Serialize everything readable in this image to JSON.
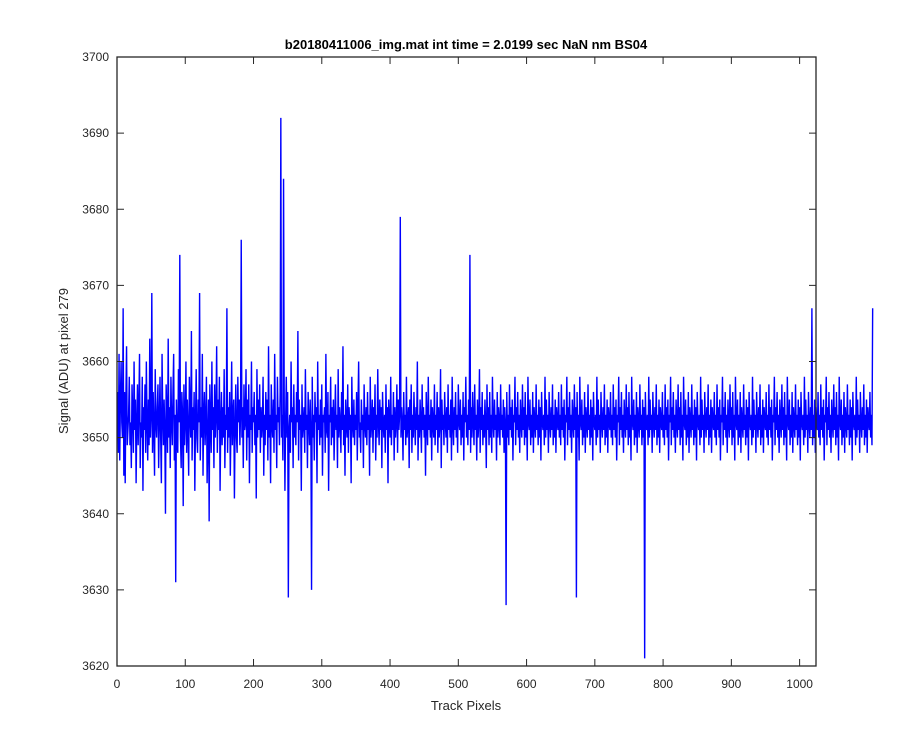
{
  "chart_data": {
    "type": "line",
    "title": "b20180411006_img.mat int time = 2.0199 sec  NaN nm BS04",
    "xlabel": "Track Pixels",
    "ylabel": "Signal (ADU) at pixel 279",
    "xlim": [
      0,
      1024
    ],
    "ylim": [
      3620,
      3700
    ],
    "xticks": [
      0,
      100,
      200,
      300,
      400,
      500,
      600,
      700,
      800,
      900,
      1000
    ],
    "yticks": [
      3620,
      3630,
      3640,
      3650,
      3660,
      3670,
      3680,
      3690,
      3700
    ],
    "xtick_labels": [
      "0",
      "100",
      "200",
      "300",
      "400",
      "500",
      "600",
      "700",
      "800",
      "900",
      "1000"
    ],
    "ytick_labels": [
      "3620",
      "3630",
      "3640",
      "3650",
      "3660",
      "3670",
      "3680",
      "3690",
      "3700"
    ],
    "grid": false,
    "line_color": "#0000ff",
    "series": [
      {
        "x_start": 1,
        "x_step": 1,
        "values": [
          3656,
          3648,
          3661,
          3647,
          3655,
          3660,
          3652,
          3650,
          3667,
          3645,
          3656,
          3644,
          3655,
          3662,
          3649,
          3651,
          3653,
          3658,
          3649,
          3652,
          3646,
          3657,
          3653,
          3648,
          3660,
          3651,
          3655,
          3644,
          3652,
          3657,
          3649,
          3654,
          3661,
          3646,
          3652,
          3650,
          3658,
          3643,
          3654,
          3651,
          3657,
          3648,
          3660,
          3652,
          3647,
          3655,
          3649,
          3663,
          3650,
          3653,
          3669,
          3648,
          3656,
          3651,
          3645,
          3659,
          3652,
          3650,
          3654,
          3657,
          3646,
          3652,
          3658,
          3650,
          3644,
          3661,
          3653,
          3649,
          3655,
          3651,
          3640,
          3657,
          3653,
          3648,
          3663,
          3650,
          3654,
          3646,
          3658,
          3652,
          3649,
          3656,
          3661,
          3647,
          3653,
          3631,
          3655,
          3650,
          3648,
          3659,
          3652,
          3674,
          3650,
          3646,
          3656,
          3653,
          3641,
          3657,
          3649,
          3652,
          3660,
          3648,
          3655,
          3651,
          3645,
          3658,
          3653,
          3650,
          3664,
          3647,
          3654,
          3651,
          3656,
          3643,
          3652,
          3659,
          3650,
          3648,
          3655,
          3652,
          3669,
          3647,
          3654,
          3650,
          3661,
          3645,
          3653,
          3656,
          3649,
          3652,
          3658,
          3644,
          3650,
          3655,
          3639,
          3657,
          3652,
          3648,
          3660,
          3651,
          3654,
          3646,
          3657,
          3650,
          3653,
          3662,
          3648,
          3655,
          3651,
          3658,
          3643,
          3652,
          3656,
          3649,
          3654,
          3650,
          3659,
          3646,
          3653,
          3651,
          3667,
          3648,
          3654,
          3650,
          3656,
          3645,
          3652,
          3660,
          3649,
          3653,
          3655,
          3642,
          3651,
          3657,
          3650,
          3648,
          3658,
          3652,
          3655,
          3649,
          3653,
          3676,
          3650,
          3654,
          3646,
          3657,
          3651,
          3652,
          3659,
          3647,
          3655,
          3650,
          3657,
          3644,
          3653,
          3651,
          3660,
          3648,
          3654,
          3652,
          3656,
          3649,
          3653,
          3642,
          3659,
          3650,
          3655,
          3651,
          3657,
          3648,
          3654,
          3650,
          3652,
          3658,
          3645,
          3653,
          3649,
          3656,
          3651,
          3655,
          3647,
          3662,
          3650,
          3653,
          3644,
          3657,
          3652,
          3650,
          3655,
          3648,
          3661,
          3651,
          3653,
          3646,
          3658,
          3652,
          3654,
          3649,
          3656,
          3692,
          3650,
          3653,
          3647,
          3684,
          3654,
          3643,
          3652,
          3658,
          3650,
          3656,
          3629,
          3651,
          3653,
          3648,
          3660,
          3652,
          3654,
          3646,
          3657,
          3650,
          3653,
          3649,
          3656,
          3652,
          3664,
          3647,
          3655,
          3651,
          3653,
          3643,
          3657,
          3650,
          3652,
          3654,
          3648,
          3659,
          3651,
          3653,
          3646,
          3656,
          3652,
          3649,
          3655,
          3651,
          3630,
          3658,
          3650,
          3653,
          3647,
          3656,
          3652,
          3654,
          3644,
          3660,
          3651,
          3653,
          3649,
          3655,
          3650,
          3657,
          3645,
          3653,
          3652,
          3654,
          3648,
          3661,
          3651,
          3650,
          3656,
          3643,
          3653,
          3652,
          3658,
          3649,
          3654,
          3650,
          3655,
          3647,
          3652,
          3657,
          3651,
          3653,
          3646,
          3659,
          3650,
          3654,
          3652,
          3648,
          3656,
          3651,
          3662,
          3649,
          3653,
          3645,
          3655,
          3652,
          3650,
          3657,
          3648,
          3654,
          3651,
          3653,
          3644,
          3658,
          3652,
          3650,
          3655,
          3649,
          3653,
          3651,
          3656,
          3647,
          3654,
          3660,
          3650,
          3652,
          3648,
          3655,
          3651,
          3653,
          3646,
          3657,
          3652,
          3650,
          3654,
          3649,
          3656,
          3651,
          3653,
          3645,
          3658,
          3650,
          3652,
          3655,
          3648,
          3654,
          3651,
          3657,
          3647,
          3653,
          3650,
          3659,
          3652,
          3649,
          3655,
          3651,
          3654,
          3646,
          3656,
          3652,
          3650,
          3653,
          3648,
          3657,
          3651,
          3654,
          3644,
          3655,
          3652,
          3650,
          3658,
          3649,
          3653,
          3651,
          3656,
          3647,
          3654,
          3650,
          3652,
          3657,
          3648,
          3655,
          3651,
          3653,
          3679,
          3650,
          3654,
          3652,
          3647,
          3656,
          3651,
          3653,
          3649,
          3658,
          3650,
          3652,
          3654,
          3646,
          3655,
          3651,
          3657,
          3648,
          3653,
          3650,
          3656,
          3652,
          3649,
          3654,
          3651,
          3660,
          3647,
          3653,
          3650,
          3655,
          3652,
          3648,
          3657,
          3651,
          3654,
          3650,
          3653,
          3645,
          3656,
          3652,
          3649,
          3658,
          3651,
          3653,
          3650,
          3655,
          3647,
          3654,
          3652,
          3650,
          3657,
          3649,
          3653,
          3651,
          3656,
          3648,
          3654,
          3650,
          3652,
          3659,
          3646,
          3655,
          3651,
          3653,
          3649,
          3656,
          3652,
          3650,
          3654,
          3648,
          3657,
          3651,
          3653,
          3650,
          3655,
          3647,
          3658,
          3652,
          3649,
          3654,
          3651,
          3656,
          3650,
          3653,
          3648,
          3657,
          3652,
          3651,
          3655,
          3649,
          3653,
          3650,
          3656,
          3647,
          3654,
          3652,
          3658,
          3650,
          3653,
          3649,
          3655,
          3651,
          3674,
          3648,
          3654,
          3650,
          3656,
          3652,
          3649,
          3657,
          3651,
          3653,
          3647,
          3655,
          3650,
          3652,
          3659,
          3648,
          3654,
          3651,
          3656,
          3649,
          3653,
          3650,
          3655,
          3652,
          3646,
          3657,
          3651,
          3654,
          3649,
          3656,
          3650,
          3653,
          3648,
          3658,
          3652,
          3650,
          3655,
          3651,
          3653,
          3647,
          3656,
          3650,
          3654,
          3652,
          3649,
          3657,
          3651,
          3653,
          3650,
          3655,
          3648,
          3654,
          3652,
          3628,
          3656,
          3650,
          3653,
          3649,
          3657,
          3651,
          3654,
          3650,
          3655,
          3647,
          3653,
          3652,
          3658,
          3649,
          3654,
          3651,
          3656,
          3650,
          3653,
          3648,
          3655,
          3652,
          3650,
          3657,
          3651,
          3654,
          3649,
          3656,
          3650,
          3653,
          3647,
          3658,
          3652,
          3651,
          3655,
          3649,
          3653,
          3650,
          3656,
          3648,
          3654,
          3652,
          3650,
          3657,
          3651,
          3653,
          3649,
          3655,
          3650,
          3654,
          3647,
          3656,
          3652,
          3651,
          3653,
          3649,
          3658,
          3650,
          3655,
          3651,
          3653,
          3648,
          3656,
          3652,
          3650,
          3654,
          3651,
          3657,
          3649,
          3653,
          3650,
          3655,
          3648,
          3654,
          3652,
          3651,
          3656,
          3650,
          3653,
          3649,
          3657,
          3651,
          3654,
          3650,
          3655,
          3647,
          3653,
          3652,
          3658,
          3649,
          3654,
          3651,
          3656,
          3650,
          3653,
          3648,
          3655,
          3652,
          3650,
          3657,
          3651,
          3654,
          3629,
          3656,
          3650,
          3653,
          3647,
          3658,
          3652,
          3651,
          3655,
          3649,
          3653,
          3650,
          3656,
          3648,
          3654,
          3652,
          3650,
          3657,
          3651,
          3653,
          3649,
          3655,
          3650,
          3654,
          3647,
          3656,
          3652,
          3651,
          3653,
          3649,
          3658,
          3650,
          3655,
          3651,
          3653,
          3648,
          3656,
          3652,
          3650,
          3654,
          3651,
          3657,
          3649,
          3653,
          3650,
          3655,
          3648,
          3654,
          3652,
          3651,
          3656,
          3650,
          3653,
          3649,
          3657,
          3651,
          3654,
          3650,
          3655,
          3647,
          3653,
          3652,
          3658,
          3649,
          3654,
          3651,
          3656,
          3650,
          3653,
          3648,
          3655,
          3652,
          3650,
          3657,
          3651,
          3654,
          3649,
          3656,
          3650,
          3653,
          3647,
          3658,
          3652,
          3651,
          3655,
          3649,
          3653,
          3650,
          3656,
          3648,
          3654,
          3652,
          3650,
          3657,
          3651,
          3653,
          3649,
          3655,
          3650,
          3654,
          3621,
          3656,
          3652,
          3651,
          3653,
          3649,
          3658,
          3650,
          3655,
          3651,
          3653,
          3648,
          3656,
          3652,
          3650,
          3654,
          3651,
          3657,
          3649,
          3653,
          3650,
          3655,
          3648,
          3654,
          3652,
          3651,
          3656,
          3650,
          3653,
          3649,
          3657,
          3651,
          3654,
          3650,
          3655,
          3647,
          3653,
          3652,
          3658,
          3649,
          3654,
          3651,
          3656,
          3650,
          3653,
          3648,
          3655,
          3652,
          3650,
          3657,
          3651,
          3654,
          3649,
          3656,
          3650,
          3653,
          3647,
          3658,
          3652,
          3651,
          3655,
          3649,
          3653,
          3650,
          3656,
          3648,
          3654,
          3652,
          3650,
          3657,
          3651,
          3653,
          3649,
          3655,
          3650,
          3654,
          3647,
          3656,
          3652,
          3651,
          3653,
          3649,
          3658,
          3650,
          3655,
          3651,
          3653,
          3648,
          3656,
          3652,
          3650,
          3654,
          3651,
          3657,
          3649,
          3653,
          3650,
          3655,
          3648,
          3654,
          3652,
          3651,
          3656,
          3650,
          3653,
          3649,
          3657,
          3651,
          3654,
          3650,
          3655,
          3647,
          3653,
          3652,
          3658,
          3649,
          3654,
          3651,
          3656,
          3650,
          3653,
          3648,
          3655,
          3652,
          3650,
          3657,
          3651,
          3654,
          3649,
          3656,
          3650,
          3653,
          3647,
          3658,
          3652,
          3651,
          3655,
          3649,
          3653,
          3650,
          3656,
          3648,
          3654,
          3652,
          3650,
          3657,
          3651,
          3653,
          3649,
          3655,
          3650,
          3654,
          3647,
          3656,
          3652,
          3651,
          3653,
          3649,
          3658,
          3650,
          3655,
          3651,
          3653,
          3648,
          3656,
          3652,
          3650,
          3654,
          3651,
          3657,
          3649,
          3653,
          3650,
          3655,
          3648,
          3654,
          3652,
          3651,
          3656,
          3650,
          3653,
          3649,
          3657,
          3651,
          3654,
          3650,
          3655,
          3647,
          3653,
          3652,
          3658,
          3649,
          3654,
          3651,
          3656,
          3650,
          3653,
          3648,
          3655,
          3652,
          3650,
          3657,
          3651,
          3654,
          3649,
          3656,
          3650,
          3653,
          3647,
          3658,
          3652,
          3651,
          3655,
          3649,
          3653,
          3650,
          3656,
          3648,
          3654,
          3652,
          3650,
          3657,
          3651,
          3653,
          3649,
          3655,
          3650,
          3654,
          3647,
          3656,
          3652,
          3651,
          3653,
          3649,
          3658,
          3650,
          3655,
          3651,
          3653,
          3648,
          3656,
          3652,
          3650,
          3654,
          3651,
          3667,
          3649,
          3653,
          3650,
          3655,
          3648,
          3654,
          3652,
          3651,
          3656,
          3650,
          3653,
          3649,
          3657,
          3651,
          3654,
          3650,
          3655,
          3647,
          3653,
          3652,
          3658,
          3649,
          3654,
          3651,
          3656,
          3650,
          3653,
          3648,
          3655,
          3652,
          3650,
          3657,
          3651,
          3654,
          3649,
          3656,
          3650,
          3653,
          3647,
          3658,
          3652,
          3651,
          3655,
          3649,
          3653,
          3650,
          3656,
          3648,
          3654,
          3652,
          3650,
          3657,
          3651,
          3653,
          3649,
          3655,
          3650,
          3654,
          3647,
          3656,
          3652,
          3651,
          3653,
          3649,
          3658,
          3650,
          3655,
          3651,
          3653,
          3648,
          3656,
          3652,
          3650,
          3654,
          3651,
          3657,
          3649,
          3653,
          3650,
          3655,
          3648,
          3654,
          3652,
          3651,
          3656,
          3650,
          3653,
          3649,
          3667
        ]
      }
    ]
  }
}
